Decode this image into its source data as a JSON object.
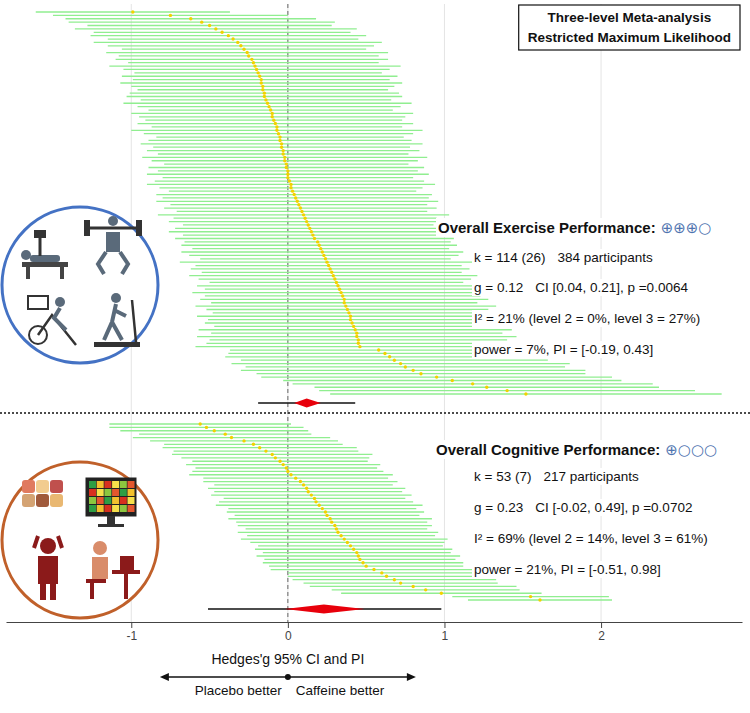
{
  "chart_data": {
    "type": "forest",
    "title": "Three-level Meta-analysis",
    "subtitle": "Restricted Maximum Likelihood",
    "xlabel": "Hedges'g 95% CI and PI",
    "annotations": [
      "Placebo better",
      "Caffeine better"
    ],
    "xlim": [
      -1.8,
      2.9
    ],
    "xticks": [
      -1,
      0,
      1,
      2
    ],
    "reference": 0,
    "grid": true,
    "tick_labels": "x",
    "series": [
      {
        "name": "Overall Exercise Performance:",
        "grade": "⊕⊕⊕○",
        "stats": [
          [
            "k = 114 (26)",
            "384 participants"
          ],
          [
            "g = 0.12",
            "CI [0.04, 0.21], p =0.0064"
          ],
          [
            "I² = 21% (level 2 = 0%, level 3 = 27%)"
          ],
          [
            "power = 7%, PI = [-0.19, 0.43]"
          ]
        ],
        "color": "#f2d200",
        "values": [
          -0.99,
          -0.75,
          -0.62,
          -0.55,
          -0.5,
          -0.46,
          -0.42,
          -0.38,
          -0.35,
          -0.32,
          -0.3,
          -0.28,
          -0.26,
          -0.25,
          -0.23,
          -0.22,
          -0.21,
          -0.2,
          -0.19,
          -0.18,
          -0.17,
          -0.17,
          -0.16,
          -0.16,
          -0.15,
          -0.15,
          -0.14,
          -0.13,
          -0.12,
          -0.11,
          -0.1,
          -0.1,
          -0.09,
          -0.08,
          -0.07,
          -0.07,
          -0.06,
          -0.05,
          -0.05,
          -0.04,
          -0.04,
          -0.03,
          -0.03,
          -0.02,
          -0.02,
          -0.01,
          -0.01,
          0,
          0,
          0,
          0.01,
          0.02,
          0.02,
          0.03,
          0.04,
          0.05,
          0.06,
          0.07,
          0.08,
          0.09,
          0.1,
          0.11,
          0.12,
          0.13,
          0.14,
          0.15,
          0.16,
          0.17,
          0.19,
          0.2,
          0.21,
          0.22,
          0.23,
          0.24,
          0.25,
          0.26,
          0.27,
          0.28,
          0.29,
          0.3,
          0.31,
          0.32,
          0.33,
          0.34,
          0.35,
          0.36,
          0.36,
          0.37,
          0.38,
          0.39,
          0.4,
          0.4,
          0.41,
          0.42,
          0.43,
          0.44,
          0.44,
          0.45,
          0.45,
          0.46,
          0.58,
          0.62,
          0.65,
          0.68,
          0.72,
          0.75,
          0.8,
          0.85,
          0.95,
          1.05,
          1.18,
          1.27,
          1.4,
          1.52
        ],
        "errors": [
          0.62,
          0.75,
          0.8,
          0.85,
          0.78,
          0.9,
          0.82,
          0.88,
          0.8,
          0.92,
          0.85,
          0.78,
          0.9,
          0.83,
          0.87,
          0.8,
          0.93,
          0.85,
          0.79,
          0.88,
          0.82,
          0.9,
          0.84,
          0.8,
          0.86,
          0.88,
          0.8,
          0.92,
          0.84,
          0.78,
          0.9,
          0.85,
          0.82,
          0.88,
          0.8,
          0.93,
          0.86,
          0.79,
          0.84,
          0.9,
          0.82,
          0.87,
          0.8,
          0.91,
          0.85,
          0.78,
          0.88,
          0.83,
          0.9,
          0.8,
          0.86,
          0.92,
          0.84,
          0.79,
          0.88,
          0.85,
          0.9,
          0.82,
          0.87,
          0.8,
          0.93,
          0.84,
          0.88,
          0.8,
          0.86,
          0.91,
          0.83,
          0.89,
          0.85,
          0.88,
          0.82,
          0.9,
          0.86,
          0.8,
          0.94,
          0.85,
          0.89,
          0.83,
          0.92,
          0.87,
          0.81,
          0.9,
          0.86,
          0.95,
          0.88,
          0.92,
          0.85,
          0.96,
          0.9,
          0.87,
          0.98,
          0.91,
          0.94,
          0.89,
          1.0,
          0.93,
          1.02,
          0.95,
          0.97,
          1.05,
          0.95,
          1.0,
          1.05,
          0.98,
          1.08,
          1.02,
          1.1,
          1.05,
          1.12,
          1.08,
          1.15,
          1.1,
          1.2,
          1.25
        ],
        "summary": {
          "value": 0.12,
          "ci": [
            0.04,
            0.21
          ],
          "pi": [
            -0.19,
            0.43
          ]
        }
      },
      {
        "name": "Overall Cognitive Performance:",
        "grade": "⊕○○○",
        "stats": [
          [
            "k = 53 (7)",
            "217 participants"
          ],
          [
            "g = 0.23",
            "CI [-0.02, 0.49], p =0.0702"
          ],
          [
            "I² = 69% (level 2 = 14%, level 3 = 61%)"
          ],
          [
            "power = 21%, PI = [-0.51, 0.98]"
          ]
        ],
        "color": "#f2d200",
        "values": [
          -0.56,
          -0.52,
          -0.47,
          -0.4,
          -0.36,
          -0.28,
          -0.22,
          -0.18,
          -0.14,
          -0.1,
          -0.08,
          -0.05,
          -0.03,
          -0.01,
          0,
          0.02,
          0.05,
          0.08,
          0.1,
          0.12,
          0.13,
          0.15,
          0.17,
          0.18,
          0.2,
          0.22,
          0.24,
          0.25,
          0.27,
          0.28,
          0.3,
          0.31,
          0.32,
          0.34,
          0.36,
          0.38,
          0.4,
          0.42,
          0.44,
          0.45,
          0.46,
          0.48,
          0.5,
          0.55,
          0.6,
          0.63,
          0.68,
          0.72,
          0.8,
          0.88,
          0.98,
          1.55,
          1.61
        ],
        "errors": [
          0.58,
          0.62,
          0.6,
          0.55,
          0.63,
          0.6,
          0.57,
          0.62,
          0.59,
          0.64,
          0.6,
          0.56,
          0.62,
          0.58,
          0.61,
          0.65,
          0.59,
          0.62,
          0.57,
          0.63,
          0.6,
          0.64,
          0.58,
          0.62,
          0.66,
          0.6,
          0.63,
          0.59,
          0.65,
          0.61,
          0.62,
          0.58,
          0.64,
          0.6,
          0.66,
          0.62,
          0.59,
          0.63,
          0.6,
          0.65,
          0.61,
          0.64,
          0.62,
          0.66,
          0.6,
          0.63,
          0.65,
          0.62,
          0.66,
          0.6,
          0.64,
          0.5,
          0.46
        ],
        "summary": {
          "value": 0.23,
          "ci": [
            -0.02,
            0.49
          ],
          "pi": [
            -0.51,
            0.98
          ]
        }
      }
    ]
  }
}
